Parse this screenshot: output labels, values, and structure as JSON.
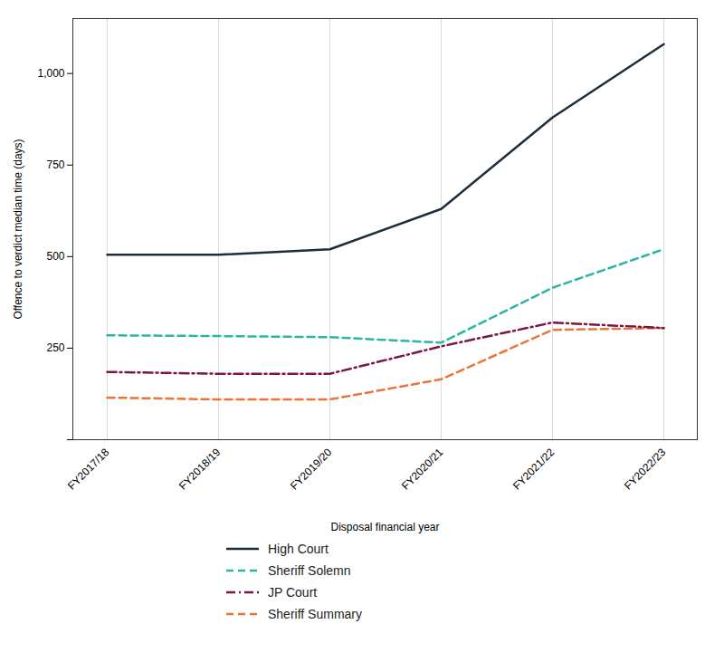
{
  "chart_data": {
    "type": "line",
    "categories": [
      "FY2017/18",
      "FY2018/19",
      "FY2019/20",
      "FY2020/21",
      "FY2021/22",
      "FY2022/23"
    ],
    "series": [
      {
        "name": "High Court",
        "color": "#1e2d3b",
        "line_style": "solid",
        "values": [
          505,
          505,
          520,
          630,
          880,
          1080
        ]
      },
      {
        "name": "Sheriff Solemn",
        "color": "#2ab5a5",
        "line_style": "dashed",
        "values": [
          285,
          283,
          280,
          265,
          415,
          520
        ]
      },
      {
        "name": "JP Court",
        "color": "#7b1648",
        "line_style": "dashdot",
        "values": [
          185,
          180,
          180,
          255,
          320,
          305
        ]
      },
      {
        "name": "Sheriff Summary",
        "color": "#e8763a",
        "line_style": "dashed",
        "values": [
          115,
          110,
          110,
          165,
          300,
          305
        ]
      }
    ],
    "xlabel": "Disposal financial year",
    "ylabel": "Offence to verdict median time (days)",
    "ylim": [
      0,
      1150
    ],
    "yticks": [
      {
        "value": 0,
        "label": ""
      },
      250,
      500,
      750,
      {
        "value": 1000,
        "label": "1,000"
      }
    ],
    "grid": "x",
    "legend": "bottom"
  }
}
